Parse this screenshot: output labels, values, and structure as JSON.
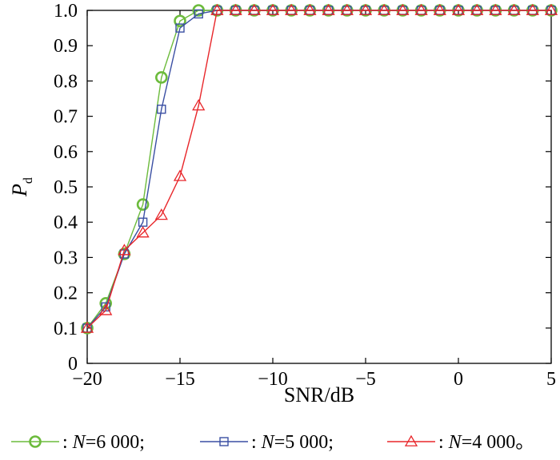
{
  "chart_data": {
    "type": "line",
    "xlabel": "SNR/dB",
    "ylabel": {
      "main": "P",
      "sub": "d"
    },
    "xlim": [
      -20,
      5
    ],
    "ylim": [
      0,
      1
    ],
    "x_ticks": [
      -20,
      -15,
      -10,
      -5,
      0,
      5
    ],
    "x_tick_labels": [
      "−20",
      "−15",
      "−10",
      "−5",
      "0",
      "5"
    ],
    "y_ticks": [
      0,
      0.1,
      0.2,
      0.3,
      0.4,
      0.5,
      0.6,
      0.7,
      0.8,
      0.9,
      1.0
    ],
    "y_tick_labels": [
      "0",
      "0.1",
      "0.2",
      "0.3",
      "0.4",
      "0.5",
      "0.6",
      "0.7",
      "0.8",
      "0.9",
      "1.0"
    ],
    "grid": false,
    "legend_position": "bottom",
    "x": [
      -20,
      -19,
      -18,
      -17,
      -16,
      -15,
      -14,
      -13,
      -12,
      -11,
      -10,
      -9,
      -8,
      -7,
      -6,
      -5,
      -4,
      -3,
      -2,
      -1,
      0,
      1,
      2,
      3,
      4,
      5
    ],
    "series": [
      {
        "name": "N=6 000",
        "legend": {
          "prefix": ": ",
          "italic": "N",
          "rest": "=6 000;"
        },
        "color": "#6cbb3c",
        "marker": "circle",
        "values": [
          0.1,
          0.17,
          0.31,
          0.45,
          0.81,
          0.97,
          1.0,
          1.0,
          1.0,
          1.0,
          1.0,
          1.0,
          1.0,
          1.0,
          1.0,
          1.0,
          1.0,
          1.0,
          1.0,
          1.0,
          1.0,
          1.0,
          1.0,
          1.0,
          1.0,
          1.0
        ]
      },
      {
        "name": "N=5 000",
        "legend": {
          "prefix": ": ",
          "italic": "N",
          "rest": "=5 000;"
        },
        "color": "#3a4fa3",
        "marker": "square",
        "values": [
          0.1,
          0.16,
          0.31,
          0.4,
          0.72,
          0.95,
          0.99,
          1.0,
          1.0,
          1.0,
          1.0,
          1.0,
          1.0,
          1.0,
          1.0,
          1.0,
          1.0,
          1.0,
          1.0,
          1.0,
          1.0,
          1.0,
          1.0,
          1.0,
          1.0,
          1.0
        ]
      },
      {
        "name": "N=4 000",
        "legend": {
          "prefix": ": ",
          "italic": "N",
          "rest": "=4 000。"
        },
        "color": "#e8262a",
        "marker": "triangle",
        "values": [
          0.1,
          0.15,
          0.32,
          0.37,
          0.42,
          0.53,
          0.73,
          1.0,
          1.0,
          1.0,
          1.0,
          1.0,
          1.0,
          1.0,
          1.0,
          1.0,
          1.0,
          1.0,
          1.0,
          1.0,
          1.0,
          1.0,
          1.0,
          1.0,
          1.0,
          1.0
        ]
      }
    ]
  }
}
